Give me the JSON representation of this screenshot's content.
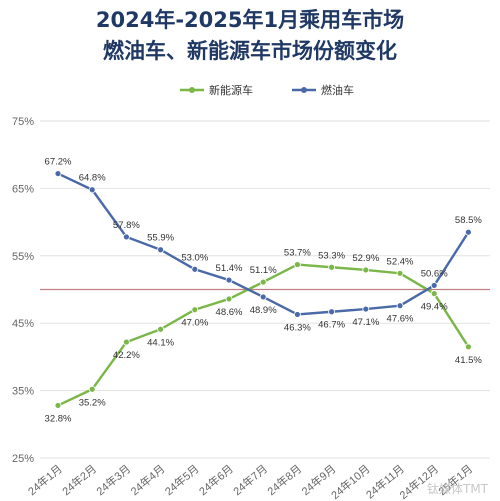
{
  "title": {
    "line1": "2024年-2025年1月乘用车市场",
    "line2": "燃油车、新能源车市场份额变化"
  },
  "colors": {
    "nev": "#7ab648",
    "fuel": "#4a69a8",
    "ref_line": "#c08080",
    "grid": "#e2e2e2"
  },
  "chart_data": {
    "type": "line",
    "title": "2024年-2025年1月乘用车市场 燃油车、新能源车市场份额变化",
    "xlabel": "",
    "ylabel": "",
    "ylim": [
      25,
      75
    ],
    "yticks": [
      "25%",
      "35%",
      "45%",
      "55%",
      "65%",
      "75%"
    ],
    "ytick_values": [
      25,
      35,
      45,
      55,
      65,
      75
    ],
    "reference_line": 50,
    "grid": true,
    "legend_position": "top",
    "categories": [
      "24年1月",
      "24年2月",
      "24年3月",
      "24年4月",
      "24年5月",
      "24年6月",
      "24年7月",
      "24年8月",
      "24年9月",
      "24年10月",
      "24年11月",
      "24年12月",
      "25年1月"
    ],
    "series": [
      {
        "name": "新能源车",
        "color": "#7ab648",
        "values": [
          32.8,
          35.2,
          42.2,
          44.1,
          47.0,
          48.6,
          51.1,
          53.7,
          53.3,
          52.9,
          52.4,
          49.4,
          41.5
        ],
        "labels": [
          "32.8%",
          "35.2%",
          "42.2%",
          "44.1%",
          "47.0%",
          "48.6%",
          "51.1%",
          "53.7%",
          "53.3%",
          "52.9%",
          "52.4%",
          "49.4%",
          "41.5%"
        ]
      },
      {
        "name": "燃油车",
        "color": "#4a69a8",
        "values": [
          67.2,
          64.8,
          57.8,
          55.9,
          53.0,
          51.4,
          48.9,
          46.3,
          46.7,
          47.1,
          47.6,
          50.6,
          58.5
        ],
        "labels": [
          "67.2%",
          "64.8%",
          "57.8%",
          "55.9%",
          "53.0%",
          "51.4%",
          "48.9%",
          "46.3%",
          "46.7%",
          "47.1%",
          "47.6%",
          "50.6%",
          "58.5%"
        ]
      }
    ]
  },
  "watermark": "钛媒体TMT"
}
